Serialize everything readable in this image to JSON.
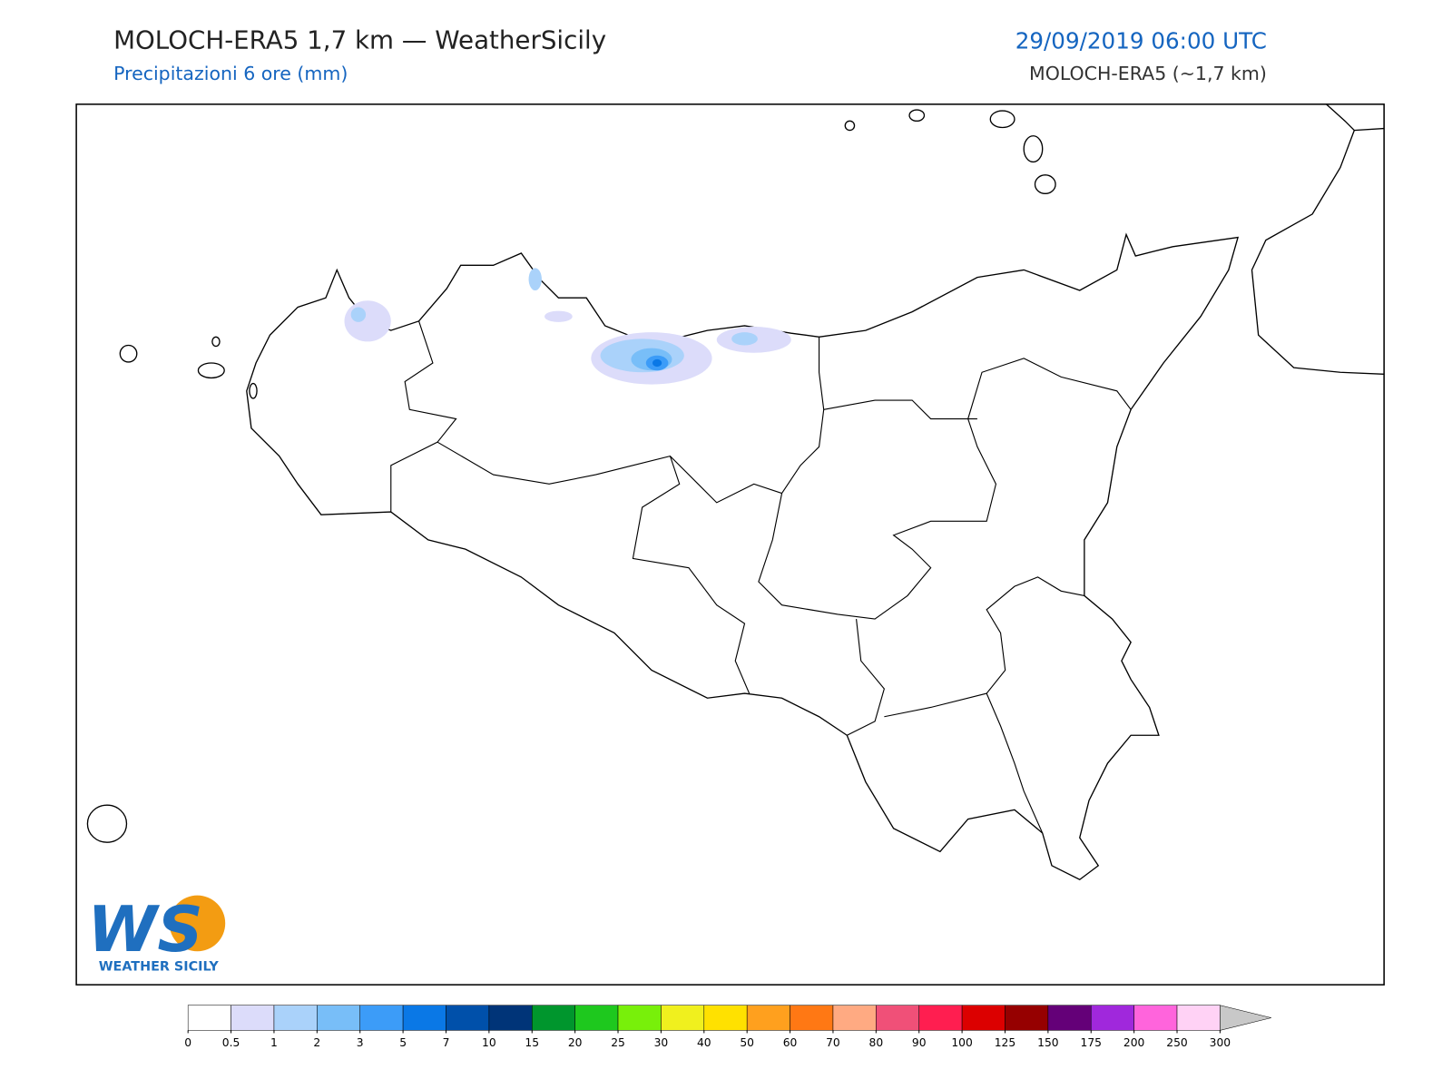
{
  "header": {
    "title": "MOLOCH-ERA5 1,7 km — WeatherSicily",
    "subtitle": "Precipitazioni 6 ore (mm)",
    "datetime": "29/09/2019 06:00 UTC",
    "model": "MOLOCH-ERA5 (~1,7 km)"
  },
  "logo": {
    "mark": "WS",
    "name": "WEATHER SICILY"
  },
  "colorbar": {
    "levels": [
      0,
      0.5,
      1,
      2,
      3,
      5,
      7,
      10,
      15,
      20,
      25,
      30,
      40,
      50,
      60,
      70,
      80,
      90,
      100,
      125,
      150,
      175,
      200,
      250,
      300
    ],
    "colors": [
      "#ffffff",
      "#dcdcfa",
      "#aad2fa",
      "#78bef8",
      "#3c9cf8",
      "#0a78e6",
      "#0050aa",
      "#003478",
      "#00962d",
      "#1ec81e",
      "#78f00a",
      "#f0f01e",
      "#ffe100",
      "#ffa01e",
      "#ff7814",
      "#ffaa82",
      "#f05078",
      "#ff1e50",
      "#dc0000",
      "#960000",
      "#640078",
      "#a028dc",
      "#ff64dc",
      "#ffd2f5"
    ],
    "extend_color": "#c8c8c8"
  }
}
